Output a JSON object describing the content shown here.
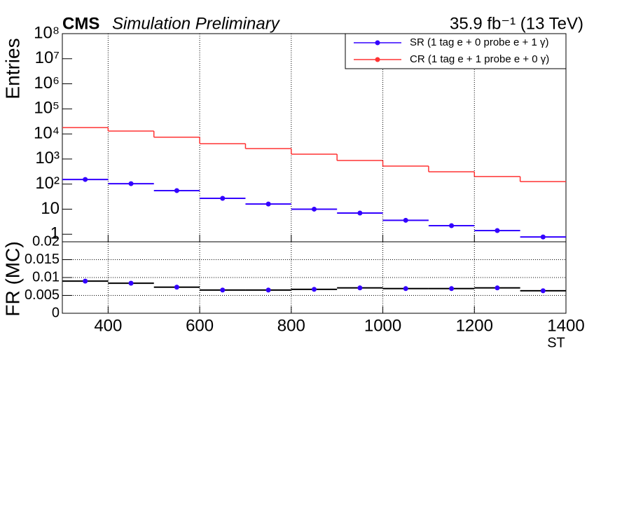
{
  "chart_data": [
    {
      "type": "histogram",
      "title": "CMS",
      "subtitle": "Simulation Preliminary",
      "annotation": "35.9 fb⁻¹ (13 TeV)",
      "y_label": "Entries",
      "log_y": true,
      "grid": "x",
      "legend": "top-right",
      "bins": [
        300,
        400,
        500,
        600,
        700,
        800,
        900,
        1000,
        1100,
        1200,
        1300,
        1400
      ],
      "xlim": [
        300,
        1400
      ],
      "xticks": [
        400,
        600,
        800,
        1000,
        1200,
        1400
      ],
      "ylim": [
        0.5,
        100000000
      ],
      "yticks": [
        1,
        10,
        {
          "value": 100,
          "label": "10²"
        },
        {
          "value": 1000,
          "label": "10³"
        },
        {
          "value": 10000,
          "label": "10⁴"
        },
        {
          "value": 100000,
          "label": "10⁵"
        },
        {
          "value": 1000000,
          "label": "10⁶"
        },
        {
          "value": 10000000,
          "label": "10⁷"
        },
        {
          "value": 100000000,
          "label": "10⁸"
        }
      ],
      "series": [
        {
          "name": "SR (1 tag e + 0 probe e + 1 γ)",
          "color": "#3300ff",
          "style": "points",
          "values": [
            153,
            104,
            55,
            27,
            16,
            10,
            7,
            3.6,
            2.2,
            1.4,
            0.78
          ]
        },
        {
          "name": "CR (1 tag e + 1 probe e + 0 γ)",
          "color": "#ff3333",
          "style": "step",
          "values": [
            18000,
            13000,
            7400,
            4100,
            2600,
            1560,
            870,
            520,
            310,
            200,
            126
          ]
        }
      ]
    },
    {
      "type": "histogram",
      "y_label": "FR (MC)",
      "x_label": "ST",
      "grid": "both",
      "bins": [
        300,
        400,
        500,
        600,
        700,
        800,
        900,
        1000,
        1100,
        1200,
        1300,
        1400
      ],
      "xlim": [
        300,
        1400
      ],
      "xticks": [
        400,
        600,
        800,
        1000,
        1200,
        1400
      ],
      "ylim": [
        0,
        0.02
      ],
      "yticks": [
        0,
        0.005,
        0.01,
        0.015,
        0.02
      ],
      "series": [
        {
          "color": "#000000",
          "marker_color": "#3300ff",
          "style": "points",
          "values": [
            0.009,
            0.0084,
            0.0073,
            0.0065,
            0.0065,
            0.0067,
            0.0071,
            0.0069,
            0.0069,
            0.0071,
            0.0063
          ]
        }
      ]
    }
  ]
}
